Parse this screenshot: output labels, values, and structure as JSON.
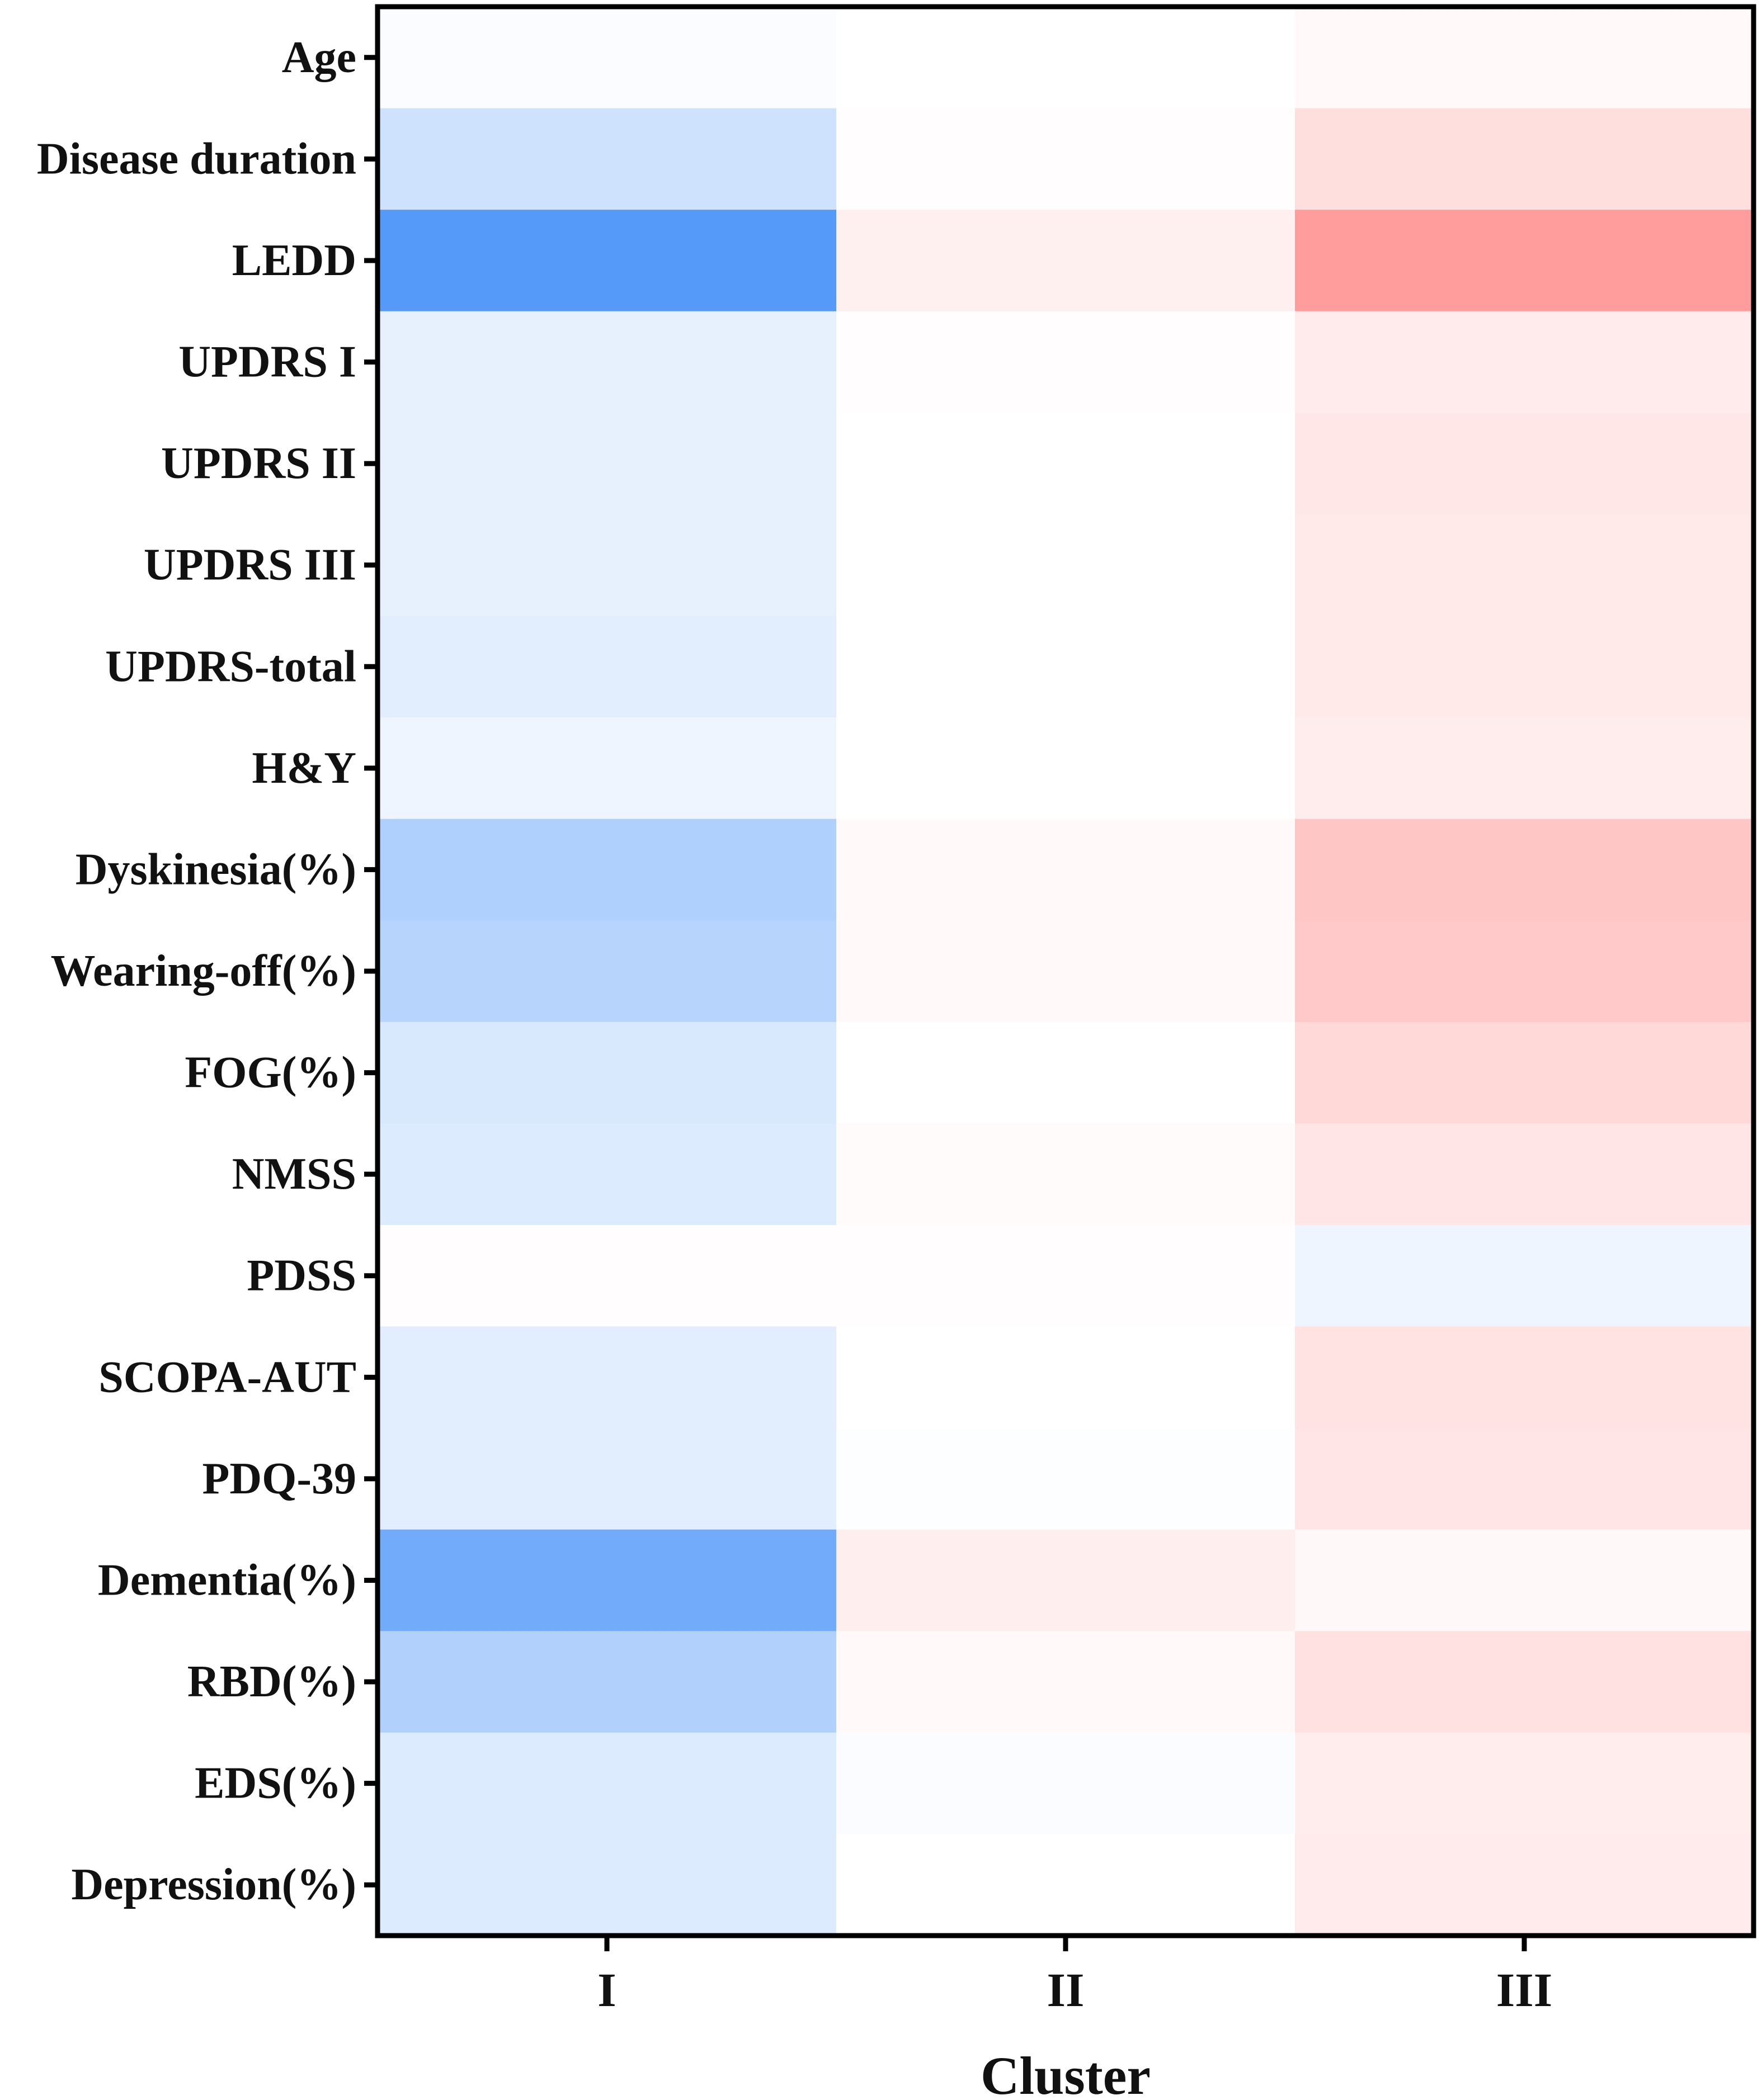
{
  "chart_data": {
    "type": "heatmap",
    "title": "",
    "xlabel": "Cluster",
    "ylabel": "",
    "x_categories": [
      "I",
      "II",
      "III"
    ],
    "y_categories": [
      "Age",
      "Disease duration",
      "LEDD",
      "UPDRS I",
      "UPDRS II",
      "UPDRS III",
      "UPDRS-total",
      "H&Y",
      "Dyskinesia(%)",
      "Wearing-off(%)",
      "FOG(%)",
      "NMSS",
      "PDSS",
      "SCOPA-AUT",
      "PDQ-39",
      "Dementia(%)",
      "RBD(%)",
      "EDS(%)",
      "Depression(%)"
    ],
    "values": [
      [
        -0.02,
        0.0,
        0.03
      ],
      [
        -0.2,
        0.01,
        0.18
      ],
      [
        -0.7,
        0.08,
        0.53
      ],
      [
        -0.1,
        0.01,
        0.11
      ],
      [
        -0.1,
        0.0,
        0.13
      ],
      [
        -0.1,
        0.0,
        0.12
      ],
      [
        -0.12,
        0.0,
        0.12
      ],
      [
        -0.07,
        0.0,
        0.1
      ],
      [
        -0.33,
        0.03,
        0.31
      ],
      [
        -0.3,
        0.03,
        0.29
      ],
      [
        -0.16,
        0.0,
        0.21
      ],
      [
        -0.14,
        0.02,
        0.14
      ],
      [
        0.01,
        0.01,
        -0.07
      ],
      [
        -0.12,
        0.0,
        0.15
      ],
      [
        -0.12,
        -0.01,
        0.14
      ],
      [
        -0.58,
        0.09,
        0.04
      ],
      [
        -0.32,
        0.03,
        0.16
      ],
      [
        -0.14,
        -0.02,
        0.1
      ],
      [
        -0.14,
        0.0,
        0.11
      ]
    ],
    "color_scale": {
      "negative": "#3d8bf7",
      "zero": "#ffffff",
      "positive": "#ff6b6b",
      "vmax": 0.8
    },
    "grid": false,
    "legend": "none"
  }
}
